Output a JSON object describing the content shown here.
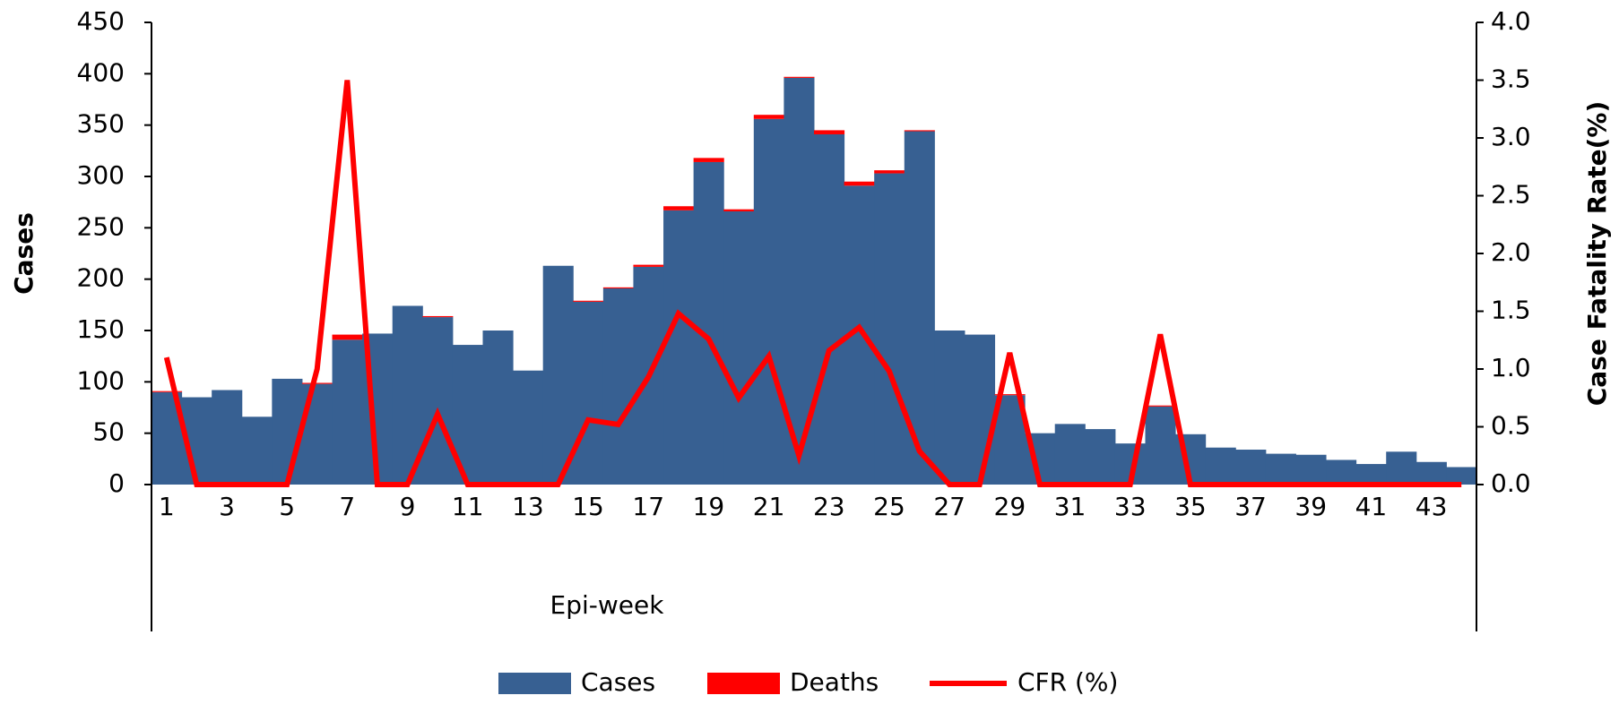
{
  "chart_data": {
    "type": "bar",
    "x_label": "Epi-week",
    "y_label": "Cases",
    "y2_label": "Case Fatality Rate(%)",
    "categories": [
      1,
      null,
      3,
      null,
      5,
      null,
      7,
      null,
      9,
      null,
      11,
      null,
      13,
      null,
      15,
      null,
      17,
      null,
      19,
      null,
      21,
      null,
      23,
      null,
      25,
      null,
      27,
      null,
      29,
      null,
      31,
      null,
      33,
      null,
      35,
      null,
      37,
      null,
      39,
      null,
      41,
      null,
      43,
      null
    ],
    "stacked": true,
    "series": [
      {
        "name": "Cases",
        "color": "#376092",
        "values": [
          90,
          85,
          92,
          66,
          103,
          98,
          141,
          147,
          174,
          163,
          136,
          150,
          111,
          213,
          178,
          191,
          212,
          267,
          314,
          266,
          356,
          396,
          341,
          291,
          303,
          344,
          150,
          146,
          87,
          50,
          59,
          54,
          40,
          76,
          49,
          36,
          34,
          30,
          29,
          24,
          20,
          32,
          22,
          17
        ]
      },
      {
        "name": "Deaths",
        "color": "#ff0000",
        "values": [
          1,
          0,
          0,
          0,
          0,
          1,
          5,
          0,
          0,
          1,
          0,
          0,
          0,
          0,
          1,
          1,
          2,
          4,
          4,
          2,
          4,
          1,
          4,
          4,
          3,
          1,
          0,
          0,
          1,
          0,
          0,
          0,
          0,
          1,
          0,
          0,
          0,
          0,
          0,
          0,
          0,
          0,
          0,
          0
        ]
      },
      {
        "name": "CFR (%)",
        "color": "#ff0000",
        "type": "line",
        "axis": "y2",
        "values": [
          1.1,
          0,
          0,
          0,
          0,
          1.0,
          3.5,
          0,
          0,
          0.61,
          0,
          0,
          0,
          0,
          0.56,
          0.52,
          0.93,
          1.48,
          1.26,
          0.75,
          1.11,
          0.25,
          1.16,
          1.36,
          0.98,
          0.29,
          0,
          0,
          1.14,
          0,
          0,
          0,
          0,
          1.3,
          0,
          0,
          0,
          0,
          0,
          0,
          0,
          0,
          0,
          0
        ]
      }
    ],
    "ylim": [
      0,
      450
    ],
    "yticks": [
      0,
      50,
      100,
      150,
      200,
      250,
      300,
      350,
      400,
      450
    ],
    "y2lim": [
      0,
      4
    ],
    "y2ticks": [
      {
        "value": 0,
        "label": "0.0"
      },
      {
        "value": 0.5,
        "label": "0.5"
      },
      {
        "value": 1,
        "label": "1.0"
      },
      {
        "value": 1.5,
        "label": "1.5"
      },
      {
        "value": 2,
        "label": "2.0"
      },
      {
        "value": 2.5,
        "label": "2.5"
      },
      {
        "value": 3,
        "label": "3.0"
      },
      {
        "value": 3.5,
        "label": "3.5"
      },
      {
        "value": 4,
        "label": "4.0"
      }
    ],
    "legend": "bottom"
  }
}
